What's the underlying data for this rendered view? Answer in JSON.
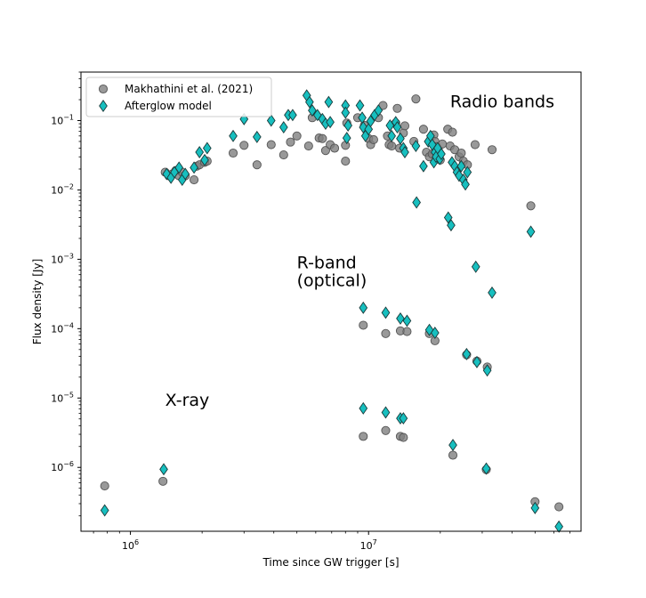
{
  "chart_data": {
    "type": "scatter",
    "xlabel": "Time since GW trigger [s]",
    "ylabel": "Flux density [Jy]",
    "xscale": "log",
    "yscale": "log",
    "xlim": [
      620000,
      78000000
    ],
    "ylim": [
      1.2e-07,
      0.5
    ],
    "x_ticks": [
      {
        "value": 1000000,
        "label_base": "10",
        "label_exp": "6"
      },
      {
        "value": 10000000,
        "label_base": "10",
        "label_exp": "7"
      }
    ],
    "y_ticks": [
      {
        "value": 0.1,
        "label_base": "10",
        "label_exp": "−1"
      },
      {
        "value": 0.01,
        "label_base": "10",
        "label_exp": "−2"
      },
      {
        "value": 0.001,
        "label_base": "10",
        "label_exp": "−3"
      },
      {
        "value": 0.0001,
        "label_base": "10",
        "label_exp": "−4"
      },
      {
        "value": 1e-05,
        "label_base": "10",
        "label_exp": "−5"
      },
      {
        "value": 1e-06,
        "label_base": "10",
        "label_exp": "−6"
      }
    ],
    "grid": false,
    "legend_position": "top-left",
    "annotations": [
      {
        "text": "Radio bands",
        "x": 22000000,
        "y": 0.155
      },
      {
        "text": "R-band",
        "x": 5000000,
        "y": 0.00074
      },
      {
        "text": "(optical)",
        "x": 5000000,
        "y": 0.00041
      },
      {
        "text": "X-ray",
        "x": 1400000,
        "y": 7.7e-06
      }
    ],
    "series": [
      {
        "name": "Makhathini et al. (2021)",
        "marker": "circle",
        "color": "#808080",
        "edge": "#555555",
        "points": [
          [
            780000,
            5.4e-07
          ],
          [
            1370000,
            6.3e-07
          ],
          [
            1400000,
            0.018
          ],
          [
            1450000,
            0.016
          ],
          [
            1500000,
            0.017
          ],
          [
            1550000,
            0.019
          ],
          [
            1600000,
            0.016
          ],
          [
            1650000,
            0.018
          ],
          [
            1700000,
            0.016
          ],
          [
            1850000,
            0.014
          ],
          [
            1900000,
            0.022
          ],
          [
            1950000,
            0.023
          ],
          [
            2050000,
            0.025
          ],
          [
            2100000,
            0.026
          ],
          [
            2700000,
            0.034
          ],
          [
            3000000,
            0.044
          ],
          [
            3400000,
            0.023
          ],
          [
            3900000,
            0.045
          ],
          [
            4400000,
            0.032
          ],
          [
            4700000,
            0.049
          ],
          [
            5000000,
            0.06
          ],
          [
            5600000,
            0.043
          ],
          [
            5800000,
            0.11
          ],
          [
            6200000,
            0.056
          ],
          [
            6400000,
            0.055
          ],
          [
            6600000,
            0.037
          ],
          [
            6900000,
            0.045
          ],
          [
            7200000,
            0.04
          ],
          [
            8000000,
            0.026
          ],
          [
            8000000,
            0.044
          ],
          [
            8100000,
            0.092
          ],
          [
            9000000,
            0.11
          ],
          [
            9600000,
            0.085
          ],
          [
            10000000,
            0.055
          ],
          [
            10200000,
            0.045
          ],
          [
            10500000,
            0.053
          ],
          [
            11000000,
            0.11
          ],
          [
            11500000,
            0.165
          ],
          [
            12000000,
            0.06
          ],
          [
            12200000,
            0.045
          ],
          [
            12500000,
            0.043
          ],
          [
            13000000,
            0.092
          ],
          [
            13200000,
            0.15
          ],
          [
            13500000,
            0.04
          ],
          [
            14000000,
            0.066
          ],
          [
            14200000,
            0.084
          ],
          [
            15500000,
            0.05
          ],
          [
            15800000,
            0.205
          ],
          [
            17000000,
            0.075
          ],
          [
            17500000,
            0.035
          ],
          [
            18000000,
            0.03
          ],
          [
            18500000,
            0.033
          ],
          [
            18800000,
            0.062
          ],
          [
            19000000,
            0.05
          ],
          [
            19300000,
            0.042
          ],
          [
            19600000,
            0.038
          ],
          [
            20000000,
            0.027
          ],
          [
            20400000,
            0.046
          ],
          [
            21500000,
            0.075
          ],
          [
            22000000,
            0.043
          ],
          [
            22500000,
            0.068
          ],
          [
            23000000,
            0.038
          ],
          [
            24000000,
            0.03
          ],
          [
            24500000,
            0.034
          ],
          [
            25000000,
            0.026
          ],
          [
            26000000,
            0.023
          ],
          [
            28000000,
            0.045
          ],
          [
            33000000,
            0.038
          ],
          [
            9500000,
            0.000112
          ],
          [
            11800000,
            8.5e-05
          ],
          [
            13600000,
            9.3e-05
          ],
          [
            14500000,
            9.1e-05
          ],
          [
            18000000,
            8.5e-05
          ],
          [
            19000000,
            6.7e-05
          ],
          [
            25800000,
            4.2e-05
          ],
          [
            28500000,
            3.4e-05
          ],
          [
            31500000,
            2.8e-05
          ],
          [
            9500000,
            2.8e-06
          ],
          [
            11800000,
            3.4e-06
          ],
          [
            13600000,
            2.8e-06
          ],
          [
            14000000,
            2.7e-06
          ],
          [
            22600000,
            1.5e-06
          ],
          [
            31200000,
            9.3e-07
          ],
          [
            48000000,
            0.0059
          ],
          [
            50000000,
            3.2e-07
          ],
          [
            63000000,
            2.7e-07
          ]
        ]
      },
      {
        "name": "Afterglow model",
        "marker": "diamond",
        "color": "#17bfbf",
        "edge": "#1a3a3a",
        "points": [
          [
            780000,
            2.4e-07
          ],
          [
            1380000,
            9.4e-07
          ],
          [
            1420000,
            0.017
          ],
          [
            1480000,
            0.015
          ],
          [
            1530000,
            0.018
          ],
          [
            1600000,
            0.021
          ],
          [
            1650000,
            0.014
          ],
          [
            1700000,
            0.017
          ],
          [
            1850000,
            0.021
          ],
          [
            1950000,
            0.035
          ],
          [
            2050000,
            0.027
          ],
          [
            2100000,
            0.04
          ],
          [
            2700000,
            0.06
          ],
          [
            3000000,
            0.105
          ],
          [
            3400000,
            0.058
          ],
          [
            3900000,
            0.1
          ],
          [
            4400000,
            0.08
          ],
          [
            4600000,
            0.12
          ],
          [
            4800000,
            0.12
          ],
          [
            5500000,
            0.23
          ],
          [
            5650000,
            0.185
          ],
          [
            5800000,
            0.14
          ],
          [
            6100000,
            0.12
          ],
          [
            6400000,
            0.105
          ],
          [
            6600000,
            0.09
          ],
          [
            6800000,
            0.185
          ],
          [
            6900000,
            0.095
          ],
          [
            8000000,
            0.165
          ],
          [
            8000000,
            0.13
          ],
          [
            8100000,
            0.056
          ],
          [
            8200000,
            0.085
          ],
          [
            9200000,
            0.165
          ],
          [
            9400000,
            0.11
          ],
          [
            9500000,
            0.08
          ],
          [
            9700000,
            0.06
          ],
          [
            10000000,
            0.075
          ],
          [
            10200000,
            0.098
          ],
          [
            10600000,
            0.12
          ],
          [
            11000000,
            0.14
          ],
          [
            12300000,
            0.085
          ],
          [
            12500000,
            0.06
          ],
          [
            13000000,
            0.095
          ],
          [
            13200000,
            0.08
          ],
          [
            13600000,
            0.055
          ],
          [
            14000000,
            0.04
          ],
          [
            14200000,
            0.035
          ],
          [
            15800000,
            0.043
          ],
          [
            15900000,
            0.0066
          ],
          [
            17000000,
            0.022
          ],
          [
            17800000,
            0.05
          ],
          [
            18200000,
            0.06
          ],
          [
            18500000,
            0.045
          ],
          [
            18800000,
            0.025
          ],
          [
            19000000,
            0.035
          ],
          [
            19200000,
            0.03
          ],
          [
            19500000,
            0.04
          ],
          [
            19900000,
            0.028
          ],
          [
            20200000,
            0.033
          ],
          [
            21600000,
            0.004
          ],
          [
            22200000,
            0.0031
          ],
          [
            22400000,
            0.025
          ],
          [
            23000000,
            0.022
          ],
          [
            23500000,
            0.018
          ],
          [
            24000000,
            0.016
          ],
          [
            24500000,
            0.022
          ],
          [
            25000000,
            0.014
          ],
          [
            25500000,
            0.012
          ],
          [
            26000000,
            0.018
          ],
          [
            28200000,
            0.00078
          ],
          [
            33000000,
            0.00033
          ],
          [
            48000000,
            0.0025
          ],
          [
            9500000,
            0.0002
          ],
          [
            11800000,
            0.00017
          ],
          [
            13600000,
            0.00014
          ],
          [
            14500000,
            0.00013
          ],
          [
            18000000,
            9.6e-05
          ],
          [
            19000000,
            8.7e-05
          ],
          [
            25800000,
            4.3e-05
          ],
          [
            28500000,
            3.3e-05
          ],
          [
            31500000,
            2.5e-05
          ],
          [
            9500000,
            7.1e-06
          ],
          [
            11800000,
            6.2e-06
          ],
          [
            13600000,
            5.1e-06
          ],
          [
            14000000,
            5.1e-06
          ],
          [
            22600000,
            2.1e-06
          ],
          [
            31200000,
            9.6e-07
          ],
          [
            50000000,
            2.6e-07
          ],
          [
            63000000,
            1.4e-07
          ]
        ]
      }
    ]
  }
}
